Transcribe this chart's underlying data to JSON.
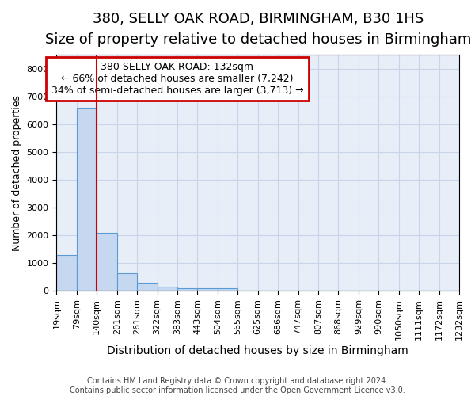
{
  "title": "380, SELLY OAK ROAD, BIRMINGHAM, B30 1HS",
  "subtitle": "Size of property relative to detached houses in Birmingham",
  "xlabel": "Distribution of detached houses by size in Birmingham",
  "ylabel": "Number of detached properties",
  "footer_line1": "Contains HM Land Registry data © Crown copyright and database right 2024.",
  "footer_line2": "Contains public sector information licensed under the Open Government Licence v3.0.",
  "bin_labels": [
    "19sqm",
    "79sqm",
    "140sqm",
    "201sqm",
    "261sqm",
    "322sqm",
    "383sqm",
    "443sqm",
    "504sqm",
    "565sqm",
    "625sqm",
    "686sqm",
    "747sqm",
    "807sqm",
    "868sqm",
    "929sqm",
    "990sqm",
    "1050sqm",
    "1111sqm",
    "1172sqm",
    "1232sqm"
  ],
  "bar_values": [
    1300,
    6600,
    2100,
    650,
    300,
    150,
    100,
    100,
    100,
    0,
    0,
    0,
    0,
    0,
    0,
    0,
    0,
    0,
    0,
    0
  ],
  "bar_color": "#c5d8f0",
  "bar_edge_color": "#5b9bd5",
  "red_line_bin_index": 2,
  "annotation_line1": "380 SELLY OAK ROAD: 132sqm",
  "annotation_line2": "← 66% of detached houses are smaller (7,242)",
  "annotation_line3": "34% of semi-detached houses are larger (3,713) →",
  "annotation_box_facecolor": "#ffffff",
  "annotation_box_edgecolor": "#cc0000",
  "ylim_max": 8500,
  "yticks": [
    0,
    1000,
    2000,
    3000,
    4000,
    5000,
    6000,
    7000,
    8000
  ],
  "grid_color": "#c8d4e8",
  "plot_bg_color": "#e8eef8",
  "title_fontsize": 13,
  "subtitle_fontsize": 11,
  "xlabel_fontsize": 10,
  "ylabel_fontsize": 9,
  "tick_fontsize": 8,
  "annotation_fontsize": 9
}
